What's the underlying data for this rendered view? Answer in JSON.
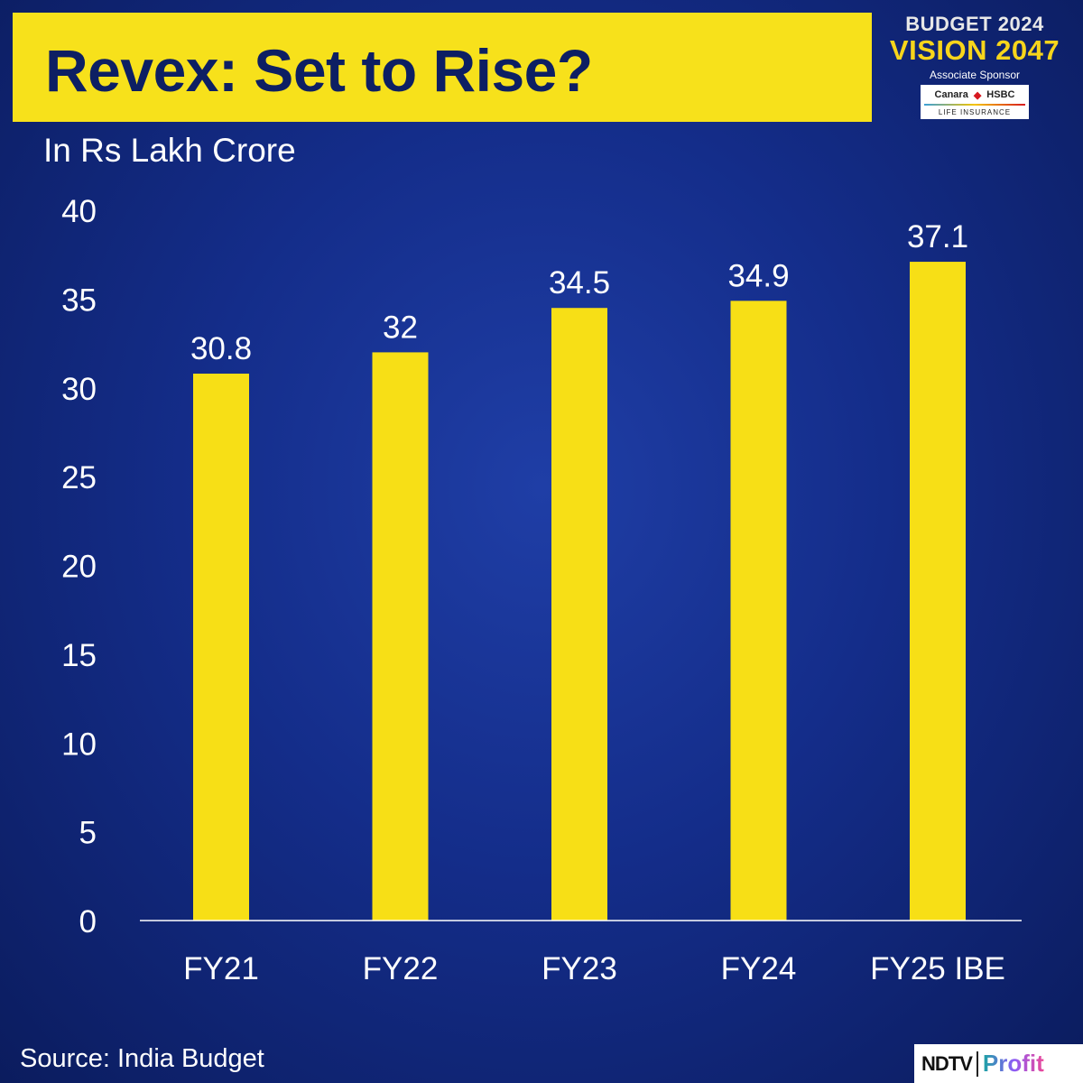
{
  "header": {
    "title": "Revex: Set to Rise?"
  },
  "brand": {
    "line1": "BUDGET 2024",
    "line2": "VISION 2047",
    "sponsor_label": "Associate Sponsor",
    "sponsor_name1": "Canara",
    "sponsor_name2": "HSBC",
    "sponsor_sub": "LIFE INSURANCE"
  },
  "footer": {
    "source": "Source: India Budget",
    "logo_left": "NDTV",
    "logo_right": "Profit"
  },
  "chart_data": {
    "type": "bar",
    "title": "Revex: Set to Rise?",
    "ylabel": "In Rs Lakh Crore",
    "xlabel": "",
    "categories": [
      "FY21",
      "FY22",
      "FY23",
      "FY24",
      "FY25 IBE"
    ],
    "values": [
      30.8,
      32,
      34.5,
      34.9,
      37.1
    ],
    "data_labels": [
      "30.8",
      "32",
      "34.5",
      "34.9",
      "37.1"
    ],
    "ylim": [
      0,
      40
    ],
    "yticks": [
      0,
      5,
      10,
      15,
      20,
      25,
      30,
      35,
      40
    ],
    "grid": false,
    "colors": {
      "bar": "#f7df16",
      "background": "#142d8a",
      "text": "#ffffff",
      "title_bg": "#f7e11b",
      "title_text": "#0d1f63"
    }
  }
}
